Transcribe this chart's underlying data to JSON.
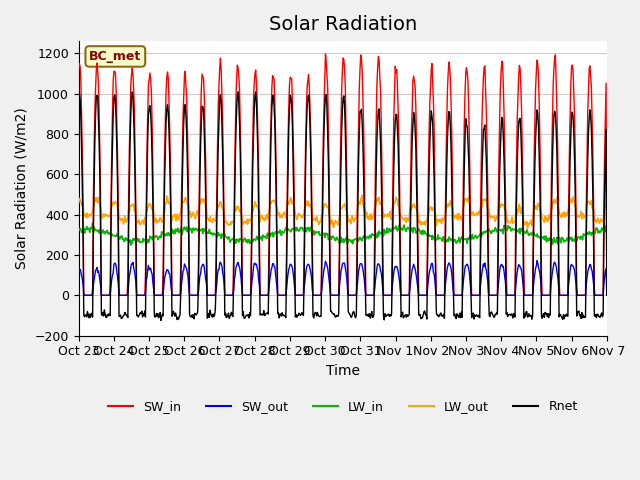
{
  "title": "Solar Radiation",
  "xlabel": "Time",
  "ylabel": "Solar Radiation (W/m2)",
  "ylim": [
    -200,
    1260
  ],
  "yticks": [
    -200,
    0,
    200,
    400,
    600,
    800,
    1000,
    1200
  ],
  "station_label": "BC_met",
  "x_tick_labels": [
    "Oct 23",
    "Oct 24",
    "Oct 25",
    "Oct 26",
    "Oct 27",
    "Oct 28",
    "Oct 29",
    "Oct 30",
    "Oct 31",
    "Nov 1",
    "Nov 2",
    "Nov 3",
    "Nov 4",
    "Nov 5",
    "Nov 6",
    "Nov 7"
  ],
  "num_days": 15,
  "legend": [
    {
      "label": "SW_in",
      "color": "#FF0000"
    },
    {
      "label": "SW_out",
      "color": "#0000FF"
    },
    {
      "label": "LW_in",
      "color": "#00BB00"
    },
    {
      "label": "LW_out",
      "color": "#FFA500"
    },
    {
      "label": "Rnet",
      "color": "#000000"
    }
  ],
  "background_color": "#F0F0F0",
  "plot_bg_color": "#FFFFFF",
  "grid_color": "#CCCCCC",
  "title_fontsize": 14,
  "label_fontsize": 10,
  "tick_fontsize": 9,
  "points_per_day": 48,
  "sw_in_peak": [
    1150,
    1130,
    1100,
    1100,
    1150,
    1100,
    1100,
    1190,
    1190,
    1100,
    1150,
    1130,
    1130,
    1170,
    1130
  ],
  "sw_out_peak": [
    130,
    160,
    130,
    150,
    160,
    155,
    155,
    160,
    155,
    145,
    155,
    155,
    150,
    160,
    150
  ],
  "rnet_peak": [
    1000,
    1000,
    950,
    950,
    1000,
    1000,
    1000,
    990,
    920,
    900,
    920,
    850,
    890,
    920,
    920
  ],
  "lw_in_base": 300,
  "lw_in_variation": 30,
  "lw_out_base": 380,
  "lw_out_variation": 80,
  "sw_in_night": -10,
  "sw_out_night": -5,
  "rnet_night": -100
}
